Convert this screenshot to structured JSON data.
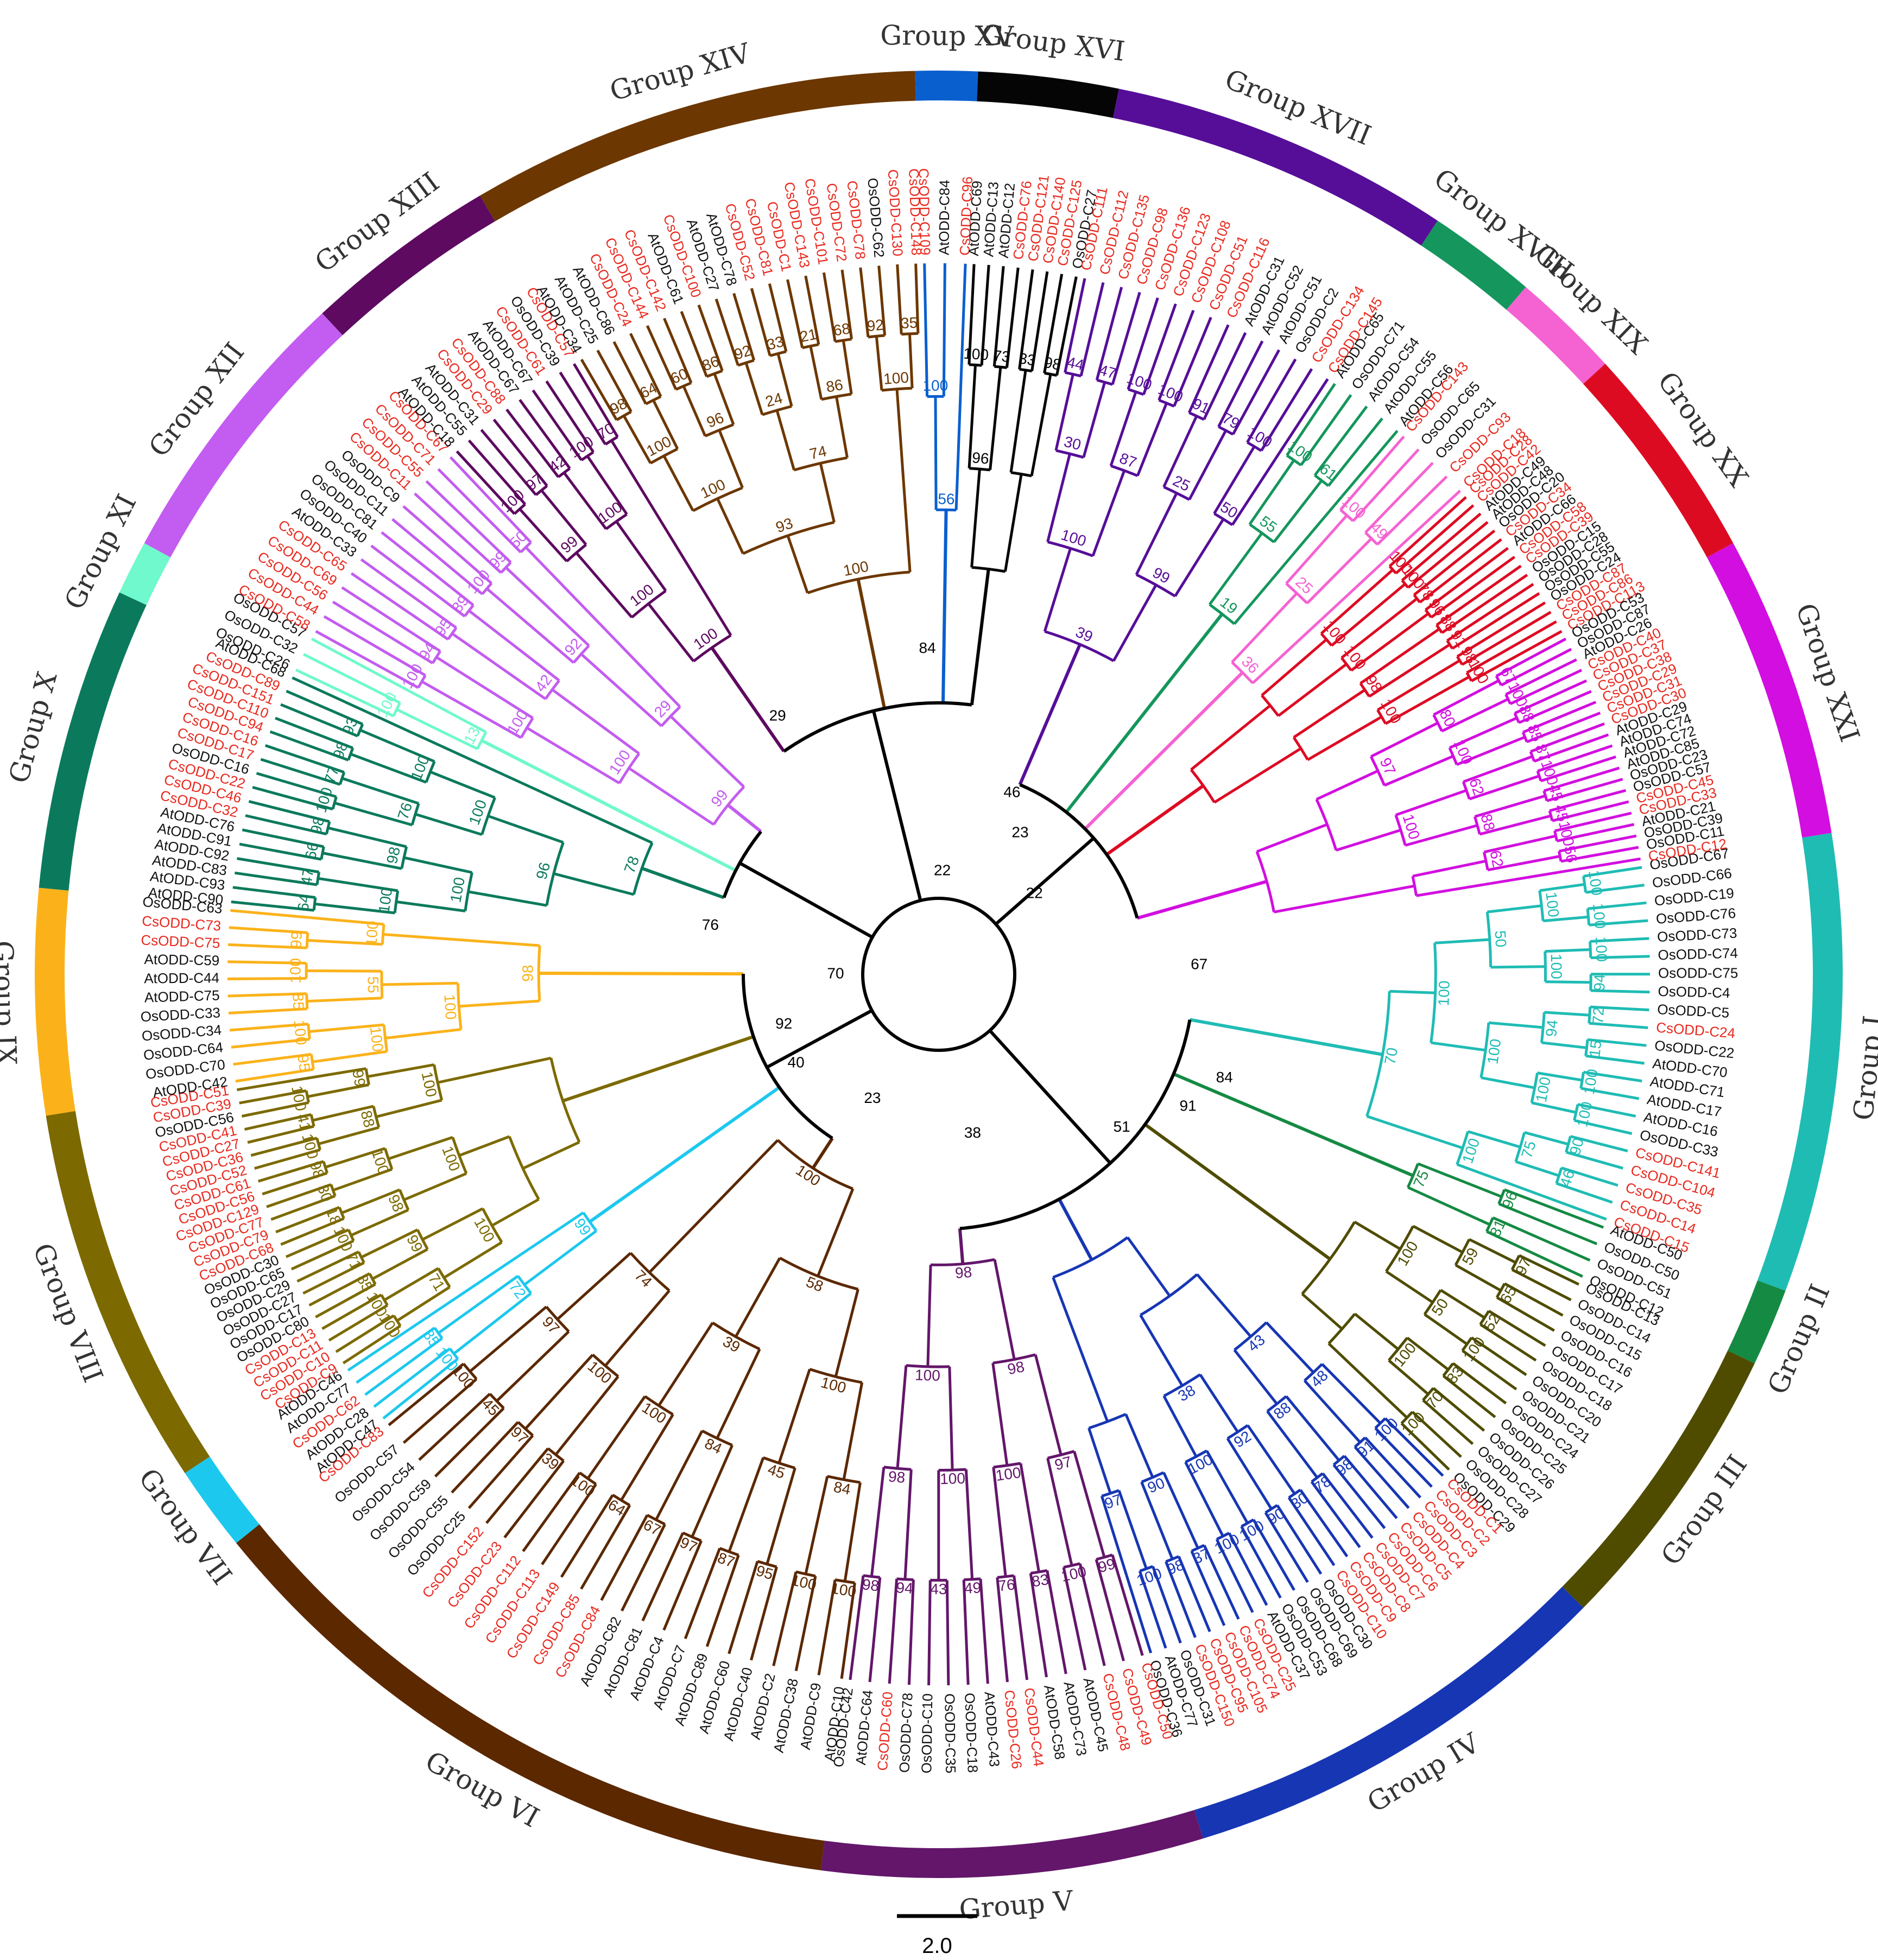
{
  "groups": [
    {
      "name": "Group I",
      "color": "#1fbcb4",
      "a1": -9.0,
      "a2": 20.5,
      "leaves": [
        "OsODD-C67",
        "OsODD-C66",
        "OsODD-C19",
        "OsODD-C76",
        "OsODD-C73",
        "OsODD-C74",
        "OsODD-C75",
        "OsODD-C4",
        "OsODD-C5",
        "CsODD-C24",
        "OsODD-C22",
        "AtODD-C70",
        "AtODD-C71",
        "AtODD-C17",
        "AtODD-C16",
        "OsODD-C33",
        "CsODD-C141",
        "CsODD-C104",
        "CsODD-C35",
        "CsODD-C14",
        "CsODD-C15"
      ],
      "boot": [
        "100",
        "100",
        "100",
        "94",
        "72",
        "15",
        "100",
        "100",
        "90",
        "46",
        "100",
        "100",
        "94",
        "100",
        "75",
        "50",
        "100",
        "100",
        "100",
        "70",
        "100"
      ]
    },
    {
      "name": "Group II",
      "color": "#158a43",
      "a1": 20.5,
      "a2": 25.5,
      "leaves": [
        "AtODD-C50",
        "OsODD-C50",
        "OsODD-C51",
        "OsODD-C12"
      ],
      "boot": [
        "96",
        "81",
        "75"
      ]
    },
    {
      "name": "Group III",
      "color": "#4f4c00",
      "a1": 25.5,
      "a2": 44.5,
      "leaves": [
        "OsODD-C13",
        "OsODD-C14",
        "OsODD-C15",
        "OsODD-C16",
        "OsODD-C17",
        "OsODD-C18",
        "OsODD-C20",
        "OsODD-C21",
        "OsODD-C24",
        "OsODD-C25",
        "OsODD-C26",
        "OsODD-C27",
        "OsODD-C28",
        "OsODD-C29"
      ],
      "boot": [
        "97",
        "65",
        "52",
        "100",
        "83",
        "70",
        "100",
        "59",
        "50",
        "100",
        "100"
      ]
    },
    {
      "name": "Group IV",
      "color": "#1736b4",
      "a1": 44.5,
      "a2": 73.0,
      "leaves": [
        "CsODD-C1",
        "CsODD-C2",
        "CsODD-C3",
        "CsODD-C4",
        "CsODD-C5",
        "CsODD-C6",
        "CsODD-C7",
        "CsODD-C8",
        "CsODD-C9",
        "CsODD-C10",
        "OsODD-C30",
        "OsODD-C69",
        "OsODD-C68",
        "OsODD-C53",
        "AtODD-C37",
        "CsODD-C25",
        "CsODD-C74",
        "CsODD-C105",
        "CsODD-C95",
        "CsODD-C150",
        "OsODD-C31",
        "AtODD-C77",
        "OsODD-C36"
      ],
      "boot": [
        "100",
        "91",
        "98",
        "78",
        "30",
        "90",
        "100",
        "100",
        "37",
        "98",
        "100",
        "48",
        "88",
        "92",
        "100",
        "90",
        "97",
        "43",
        "38"
      ]
    },
    {
      "name": "Group V",
      "color": "#63166a",
      "a1": 73.0,
      "a2": 97.5,
      "leaves": [
        "CsODD-C50",
        "CsODD-C49",
        "CsODD-C48",
        "AtODD-C45",
        "AtODD-C73",
        "AtODD-C58",
        "CsODD-C44",
        "CsODD-C26",
        "AtODD-C43",
        "OsODD-C18",
        "OsODD-C35",
        "OsODD-C10",
        "OsODD-C78",
        "CsODD-C60",
        "AtODD-C64",
        "OsODD-C42"
      ],
      "boot": [
        "99",
        "100",
        "83",
        "76",
        "49",
        "43",
        "94",
        "98",
        "97",
        "100",
        "100",
        "98",
        "98",
        "100",
        "98"
      ]
    },
    {
      "name": "Group VI",
      "color": "#5b2800",
      "a1": 97.5,
      "a2": 141.0,
      "leaves": [
        "AtODD-C10",
        "AtODD-C9",
        "AtODD-C38",
        "AtODD-C2",
        "AtODD-C40",
        "AtODD-C60",
        "AtODD-C89",
        "AtODD-C7",
        "AtODD-C4",
        "AtODD-C81",
        "AtODD-C82",
        "CsODD-C84",
        "CsODD-C85",
        "CsODD-C149",
        "CsODD-C113",
        "CsODD-C112",
        "CsODD-C23",
        "CsODD-C152",
        "OsODD-C25",
        "OsODD-C55",
        "OsODD-C59",
        "OsODD-C54",
        "OsODD-C57",
        "CsODD-C83"
      ],
      "boot": [
        "100",
        "100",
        "95",
        "87",
        "97",
        "67",
        "64",
        "100",
        "39",
        "97",
        "45",
        "100",
        "84",
        "45",
        "84",
        "100",
        "100",
        "97",
        "100",
        "39",
        "74",
        "58",
        "100",
        "80",
        "98",
        "100",
        "73",
        "97"
      ]
    },
    {
      "name": "Group VII",
      "color": "#1dc8ee",
      "a1": 141.0,
      "a2": 146.5,
      "leaves": [
        "AtODD-C47",
        "AtODD-C28",
        "CsODD-C62",
        "AtODD-C77",
        "AtODD-C46"
      ],
      "boot": [
        "100",
        "85",
        "72",
        "99",
        "73"
      ]
    },
    {
      "name": "Group VIII",
      "color": "#7c6a00",
      "a1": 146.5,
      "a2": 171.0,
      "leaves": [
        "CsODD-C9",
        "CsODD-C10",
        "CsODD-C11",
        "CsODD-C13",
        "OsODD-C80",
        "OsODD-C17",
        "OsODD-C27",
        "OsODD-C29",
        "OsODD-C65",
        "OsODD-C30",
        "CsODD-C68",
        "CsODD-C79",
        "CsODD-C77",
        "CsODD-C129",
        "CsODD-C56",
        "CsODD-C61",
        "CsODD-C52",
        "CsODD-C36",
        "CsODD-C27",
        "CsODD-C41",
        "OsODD-C56",
        "CsODD-C39",
        "CsODD-C51"
      ],
      "boot": [
        "100",
        "100",
        "85",
        "71",
        "100",
        "18",
        "30",
        "98",
        "100",
        "41",
        "100",
        "71",
        "99",
        "98",
        "100",
        "88",
        "99",
        "100",
        "100",
        "100"
      ]
    },
    {
      "name": "Group IX",
      "color": "#fbb21a",
      "a1": 171.0,
      "a2": 185.5,
      "leaves": [
        "AtODD-C42",
        "OsODD-C70",
        "OsODD-C64",
        "OsODD-C34",
        "OsODD-C33",
        "AtODD-C75",
        "AtODD-C44",
        "AtODD-C59",
        "CsODD-C75",
        "CsODD-C73",
        "OsODD-C63"
      ],
      "boot": [
        "95",
        "100",
        "85",
        "100",
        "99",
        "100",
        "55",
        "100",
        "100",
        "98",
        "88"
      ]
    },
    {
      "name": "Group X",
      "color": "#0b7a5c",
      "a1": 185.5,
      "a2": 205.0,
      "leaves": [
        "AtODD-C90",
        "AtODD-C93",
        "AtODD-C83",
        "AtODD-C92",
        "AtODD-C91",
        "AtODD-C76",
        "CsODD-C32",
        "CsODD-C46",
        "CsODD-C22",
        "OsODD-C16",
        "CsODD-C17",
        "CsODD-C16",
        "CsODD-C94",
        "CsODD-C110",
        "CsODD-C151",
        "CsODD-C89",
        "AtODD-C68"
      ],
      "boot": [
        "64",
        "47",
        "66",
        "98",
        "100",
        "77",
        "98",
        "93",
        "100",
        "98",
        "76",
        "100",
        "100",
        "100",
        "96",
        "78",
        "100"
      ]
    },
    {
      "name": "Group XI",
      "color": "#6ff9cc",
      "a1": 205.0,
      "a2": 208.5,
      "leaves": [
        "OsODD-C26",
        "OsODD-C32",
        "OsODD-C57"
      ],
      "boot": [
        "100",
        "13",
        "32"
      ]
    },
    {
      "name": "Group XII",
      "color": "#c35cf0",
      "a1": 208.5,
      "a2": 227.0,
      "leaves": [
        "CsODD-C58",
        "CsODD-C44",
        "CsODD-C56",
        "CsODD-C69",
        "CsODD-C65",
        "AtODD-C33",
        "OsODD-C40",
        "OsODD-C81",
        "OsODD-C11",
        "OsODD-C9",
        "CsODD-C11",
        "CsODD-C55",
        "CsODD-C71",
        "CsODD-C67"
      ],
      "boot": [
        "100",
        "94",
        "95",
        "89",
        "100",
        "99",
        "50",
        "100",
        "42",
        "92",
        "100",
        "29",
        "99",
        "100",
        "24",
        "55",
        "29"
      ]
    },
    {
      "name": "Group XIII",
      "color": "#5d0a60",
      "a1": 227.0,
      "a2": 239.5,
      "leaves": [
        "AtODD-C18",
        "AtODD-C55",
        "AtODD-C31",
        "CsODD-C29",
        "CsODD-C88",
        "AtODD-C67",
        "AtODD-C67",
        "CsODD-C61",
        "OsODD-C39",
        "CsODD-C57"
      ],
      "boot": [
        "100",
        "97",
        "42",
        "100",
        "70",
        "99",
        "100",
        "100",
        "100",
        "100"
      ]
    },
    {
      "name": "Group XIV",
      "color": "#6c3700",
      "a1": 239.5,
      "a2": 268.5,
      "leaves": [
        "AtODD-C34",
        "AtODD-C25",
        "AtODD-C86",
        "CsODD-C24",
        "CsODD-C144",
        "CsODD-C142",
        "AtODD-C61",
        "CsODD-C100",
        "AtODD-C27",
        "AtODD-C78",
        "CsODD-C52",
        "CsODD-C81",
        "CsODD-C1",
        "CsODD-C143",
        "CsODD-C101",
        "CsODD-C72",
        "CsODD-C78",
        "OsODD-C62",
        "CsODD-C130",
        "CsODD-C148"
      ],
      "boot": [
        "98",
        "64",
        "60",
        "86",
        "92",
        "33",
        "21",
        "68",
        "92",
        "35",
        "100",
        "96",
        "24",
        "86",
        "100",
        "100",
        "74",
        "93",
        "100",
        "86",
        "99",
        "100",
        "100",
        "100",
        "100",
        "100"
      ]
    },
    {
      "name": "Group XV",
      "color": "#0a5fcf",
      "a1": 268.5,
      "a2": 272.5,
      "leaves": [
        "CsODD-C109",
        "AtODD-C84",
        "CsODD-C96"
      ],
      "boot": [
        "100",
        "56",
        "100",
        "35"
      ]
    },
    {
      "name": "Group XVI",
      "color": "#050505",
      "a1": 272.5,
      "a2": 281.5,
      "leaves": [
        "AtODD-C69",
        "AtODD-C13",
        "AtODD-C12",
        "CsODD-C76",
        "CsODD-C121",
        "CsODD-C140",
        "CsODD-C125",
        "OsODD-C27"
      ],
      "boot": [
        "100",
        "73",
        "33",
        "98",
        "96"
      ]
    },
    {
      "name": "Group XVII",
      "color": "#560e98",
      "a1": 281.5,
      "a2": 303.5,
      "leaves": [
        "CsODD-C111",
        "CsODD-C112",
        "CsODD-C135",
        "CsODD-C98",
        "CsODD-C136",
        "CsODD-C123",
        "CsODD-C108",
        "CsODD-C51",
        "CsODD-C116",
        "AtODD-C31",
        "AtODD-C52",
        "AtODD-C51",
        "OsODD-C2",
        "CsODD-C134",
        "CsODD-C145"
      ],
      "boot": [
        "44",
        "47",
        "100",
        "100",
        "91",
        "79",
        "100",
        "30",
        "87",
        "25",
        "50",
        "100",
        "99",
        "39",
        "40",
        "100",
        "74",
        "100",
        "6",
        "91",
        "92"
      ]
    },
    {
      "name": "Group XVIII",
      "color": "#14965c",
      "a1": 303.5,
      "a2": 310.5,
      "leaves": [
        "AtODD-C65",
        "OsODD-C71",
        "AtODD-C54",
        "AtODD-C55",
        "AtODD-C56"
      ],
      "boot": [
        "100",
        "61",
        "55",
        "19"
      ]
    },
    {
      "name": "Group XIX",
      "color": "#f562d2",
      "a1": 310.5,
      "a2": 317.5,
      "leaves": [
        "CsODD-C143",
        "OsODD-C65",
        "OsODD-C31",
        "CsODD-C93",
        "CsODD-C18"
      ],
      "boot": [
        "100",
        "49",
        "25",
        "36",
        "100"
      ]
    },
    {
      "name": "Group XX",
      "color": "#dd0b22",
      "a1": 317.5,
      "a2": 331.5,
      "leaves": [
        "CsODD-C28",
        "CsODD-C42",
        "AtODD-C49",
        "AtODD-C48",
        "OsODD-C20",
        "CsODD-C34",
        "AtODD-C66",
        "CsODD-C58",
        "CsODD-C39",
        "OsODD-C15",
        "OsODD-C28",
        "OsODD-C55",
        "OsODD-C24",
        "CsODD-C87",
        "CsODD-C86",
        "CsODD-C113"
      ],
      "boot": [
        "100",
        "100",
        "78",
        "96",
        "88",
        "91",
        "98",
        "100",
        "100",
        "100",
        "98",
        "100"
      ]
    },
    {
      "name": "Group XXI",
      "color": "#d20ee0",
      "a1": 331.5,
      "a2": 351.0,
      "leaves": [
        "OsODD-C53",
        "OsODD-C87",
        "AtODD-C26",
        "CsODD-C40",
        "CsODD-C37",
        "CsODD-C38",
        "CsODD-C29",
        "CsODD-C31",
        "CsODD-C30",
        "AtODD-C29",
        "AtODD-C74",
        "AtODD-C72",
        "AtODD-C85",
        "OsODD-C23",
        "OsODD-C57",
        "CsODD-C45",
        "CsODD-C33",
        "AtODD-C21",
        "OsODD-C39",
        "OsODD-C11",
        "CsODD-C12"
      ],
      "boot": [
        "67",
        "100",
        "88",
        "85",
        "87",
        "100",
        "45",
        "45",
        "100",
        "56",
        "80",
        "100",
        "62",
        "88",
        "62",
        "97",
        "100"
      ]
    }
  ],
  "spine": {
    "labels": [
      "22",
      "70",
      "92",
      "40",
      "23",
      "38",
      "51",
      "91",
      "84",
      "22",
      "23",
      "46",
      "84",
      "76",
      "29",
      "67",
      "100",
      "100",
      "100",
      "100",
      "100",
      "99",
      "100"
    ]
  },
  "scale_label": "2.0",
  "colors": {
    "background": "#ffffff",
    "leaf_cs": "#e8291f",
    "leaf_other": "#111111",
    "backbone": "#000000"
  }
}
